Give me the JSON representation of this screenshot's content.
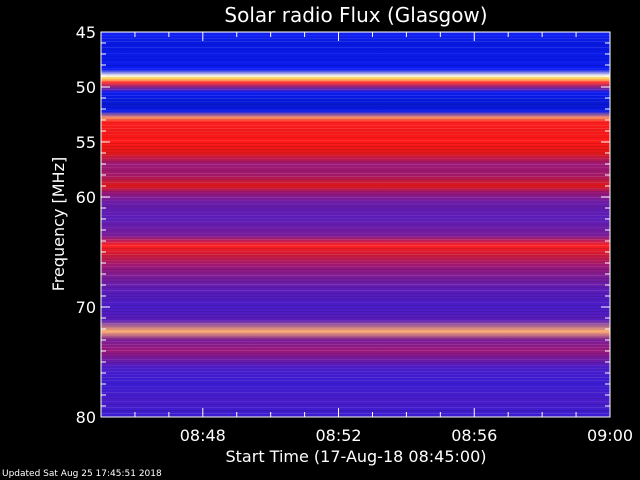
{
  "footer": {
    "updated": "Updated Sat Aug 25 17:45:51 2018"
  },
  "chart_data": {
    "type": "heatmap",
    "title": "Solar radio Flux (Glasgow)",
    "xlabel": "Start Time (17-Aug-18 08:45:00)",
    "ylabel": "Frequency [MHz]",
    "x_tick_labels": [
      "08:48",
      "08:52",
      "08:56",
      "09:00"
    ],
    "x_ticks_minutes": [
      3,
      7,
      11,
      15
    ],
    "xlim_minutes": [
      0,
      15
    ],
    "y_tick_labels": [
      "45",
      "50",
      "55",
      "60",
      "70",
      "80"
    ],
    "y_ticks_mhz": [
      45,
      50,
      55,
      60,
      70,
      80
    ],
    "ylim_mhz": [
      45,
      80
    ],
    "y_axis_direction": "inverted",
    "colormap": "blue-red-yellow-white",
    "colors": {
      "background": "#000000",
      "low": "#0010d8",
      "mid": "#6a1ca8",
      "high": "#e81818",
      "peak": "#ffe070"
    },
    "bands": [
      {
        "mhz": 45.3,
        "color": "#1020f0"
      },
      {
        "mhz": 46.0,
        "color": "#0818e0"
      },
      {
        "mhz": 47.2,
        "color": "#0a1ae8"
      },
      {
        "mhz": 48.4,
        "color": "#0a1af0"
      },
      {
        "mhz": 49.0,
        "color": "#fff8e8"
      },
      {
        "mhz": 49.2,
        "color": "#ffe060"
      },
      {
        "mhz": 49.6,
        "color": "#ff3030"
      },
      {
        "mhz": 50.5,
        "color": "#0a1af0"
      },
      {
        "mhz": 51.5,
        "color": "#0818d0"
      },
      {
        "mhz": 52.2,
        "color": "#0a1ae8"
      },
      {
        "mhz": 52.8,
        "color": "#ff9060"
      },
      {
        "mhz": 53.2,
        "color": "#ff2020"
      },
      {
        "mhz": 54.0,
        "color": "#f01818"
      },
      {
        "mhz": 55.0,
        "color": "#ff1818"
      },
      {
        "mhz": 56.0,
        "color": "#e01818"
      },
      {
        "mhz": 57.0,
        "color": "#9a1878"
      },
      {
        "mhz": 58.0,
        "color": "#a01868"
      },
      {
        "mhz": 59.0,
        "color": "#e01818"
      },
      {
        "mhz": 59.6,
        "color": "#9a1878"
      },
      {
        "mhz": 60.5,
        "color": "#6a1ca8"
      },
      {
        "mhz": 62.0,
        "color": "#5a1cb8"
      },
      {
        "mhz": 63.5,
        "color": "#7a1c98"
      },
      {
        "mhz": 64.4,
        "color": "#ff2020"
      },
      {
        "mhz": 65.3,
        "color": "#c81838"
      },
      {
        "mhz": 66.3,
        "color": "#9a1878"
      },
      {
        "mhz": 67.3,
        "color": "#7a1c98"
      },
      {
        "mhz": 68.5,
        "color": "#5a1cb8"
      },
      {
        "mhz": 70.0,
        "color": "#4a1cc8"
      },
      {
        "mhz": 71.2,
        "color": "#5a1cb8"
      },
      {
        "mhz": 72.2,
        "color": "#ffb070"
      },
      {
        "mhz": 73.0,
        "color": "#7a1c98"
      },
      {
        "mhz": 74.0,
        "color": "#9a1878"
      },
      {
        "mhz": 75.5,
        "color": "#4a1cc8"
      },
      {
        "mhz": 77.0,
        "color": "#3a1cd0"
      },
      {
        "mhz": 78.5,
        "color": "#4a1cc8"
      },
      {
        "mhz": 80.0,
        "color": "#3a1cd0"
      }
    ]
  }
}
